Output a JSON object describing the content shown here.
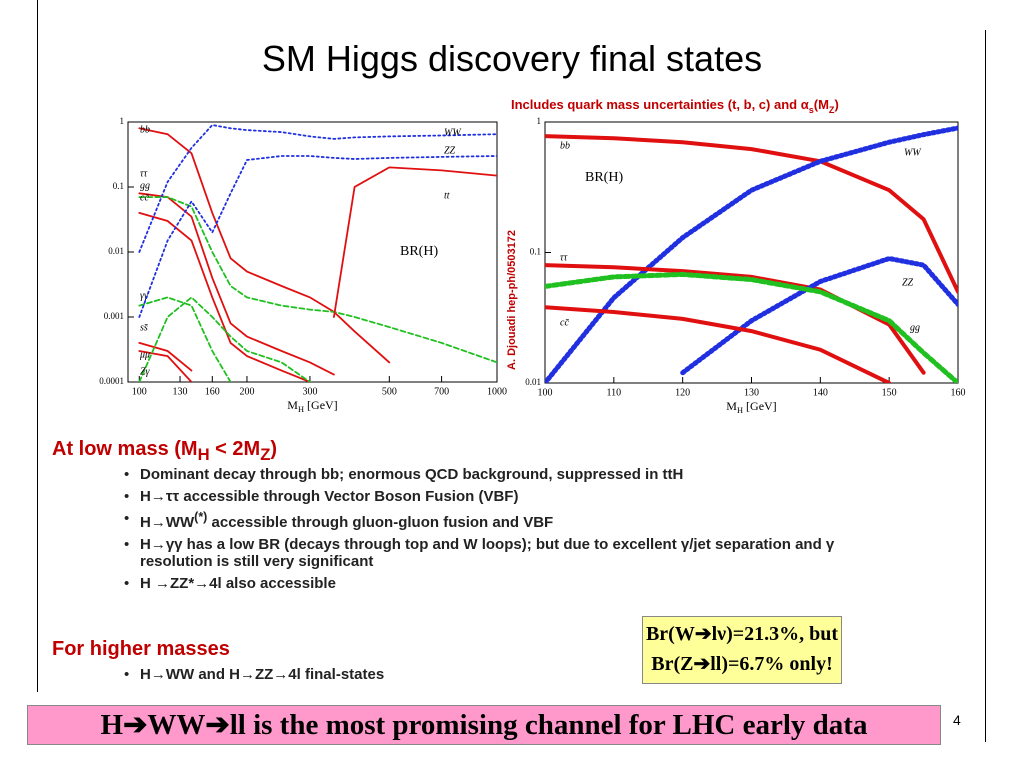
{
  "title": "SM Higgs discovery final states",
  "chart_data": [
    {
      "type": "line",
      "xscale": "log",
      "yscale": "log",
      "xlabel": [
        "M",
        "H",
        " [GeV]"
      ],
      "annotation": "BR(H)",
      "x": [
        100,
        120,
        140,
        160,
        180,
        200,
        250,
        300,
        350,
        400,
        500,
        700,
        1000
      ],
      "xlim": [
        93,
        1000
      ],
      "xticks": [
        100,
        130,
        160,
        200,
        300,
        500,
        700,
        1000
      ],
      "ylim": [
        0.0001,
        1
      ],
      "yticks": [
        1,
        0.1,
        0.01,
        0.001,
        0.0001
      ],
      "series": [
        {
          "name": "bb",
          "color": "#e01010",
          "dash": "solid",
          "values": [
            0.8,
            0.65,
            0.33,
            0.04,
            0.008,
            0.005,
            0.003,
            0.002,
            0.0012,
            0.0006,
            0.0002,
            null,
            null
          ]
        },
        {
          "name": "ττ",
          "color": "#e01010",
          "dash": "solid",
          "values": [
            0.08,
            0.07,
            0.035,
            0.004,
            0.0008,
            0.0005,
            0.0003,
            0.0002,
            0.00013,
            null,
            null,
            null,
            null
          ]
        },
        {
          "name": "gg",
          "color": "#20c020",
          "dash": "dashed",
          "values": [
            0.07,
            0.07,
            0.05,
            0.01,
            0.003,
            0.002,
            0.0015,
            0.0013,
            0.0012,
            0.001,
            0.0007,
            0.0004,
            0.0002
          ]
        },
        {
          "name": "cc̄",
          "color": "#e01010",
          "dash": "solid",
          "values": [
            0.04,
            0.03,
            0.015,
            0.002,
            0.0004,
            0.00025,
            0.00015,
            0.0001,
            null,
            null,
            null,
            null,
            null
          ]
        },
        {
          "name": "γγ",
          "color": "#20c020",
          "dash": "dashed",
          "values": [
            0.0015,
            0.002,
            0.0015,
            0.0003,
            0.0001,
            null,
            null,
            null,
            null,
            null,
            null,
            null,
            null
          ]
        },
        {
          "name": "ss̄",
          "color": "#e01010",
          "dash": "solid",
          "values": [
            0.0004,
            0.0003,
            0.00015,
            null,
            null,
            null,
            null,
            null,
            null,
            null,
            null,
            null,
            null
          ]
        },
        {
          "name": "μμ",
          "color": "#e01010",
          "dash": "solid",
          "values": [
            0.0003,
            0.00025,
            0.0001,
            null,
            null,
            null,
            null,
            null,
            null,
            null,
            null,
            null,
            null
          ]
        },
        {
          "name": "Zγ",
          "color": "#20c020",
          "dash": "dashed",
          "values": [
            0.0001,
            0.001,
            0.002,
            0.001,
            0.0005,
            0.0003,
            0.0002,
            0.0001,
            null,
            null,
            null,
            null,
            null
          ]
        },
        {
          "name": "WW",
          "color": "#2030e0",
          "dash": "dotted",
          "values": [
            0.01,
            0.12,
            0.4,
            0.9,
            0.8,
            0.75,
            0.7,
            0.6,
            0.55,
            0.58,
            0.6,
            0.62,
            0.65
          ]
        },
        {
          "name": "ZZ",
          "color": "#2030e0",
          "dash": "dotted",
          "values": [
            0.001,
            0.015,
            0.06,
            0.02,
            0.08,
            0.26,
            0.3,
            0.3,
            0.28,
            0.27,
            0.28,
            0.29,
            0.3
          ]
        },
        {
          "name": "tt",
          "color": "#e01010",
          "dash": "solid",
          "values": [
            null,
            null,
            null,
            null,
            null,
            null,
            null,
            null,
            0.001,
            0.1,
            0.2,
            0.18,
            0.15
          ]
        }
      ]
    },
    {
      "type": "line",
      "yscale": "log",
      "title": [
        "Includes quark mass uncertainties (t, b, c) and α",
        "s",
        "(M",
        "Z",
        ")"
      ],
      "side_note": "A. Djouadi hep-ph/0503172",
      "xlabel": [
        "M",
        "H",
        " [GeV]"
      ],
      "annotation": "BR(H)",
      "x": [
        100,
        110,
        120,
        130,
        140,
        150,
        155,
        160
      ],
      "xlim": [
        100,
        160
      ],
      "xticks": [
        100,
        110,
        120,
        130,
        140,
        150,
        160
      ],
      "ylim": [
        0.01,
        1
      ],
      "yticks": [
        1,
        0.1,
        0.01
      ],
      "series": [
        {
          "name": "bb",
          "color": "#e01010",
          "dash": "solid",
          "values": [
            0.78,
            0.75,
            0.7,
            0.62,
            0.5,
            0.3,
            0.18,
            0.05
          ]
        },
        {
          "name": "WW",
          "color": "#2030e0",
          "dash": "dotted",
          "values": [
            0.01,
            0.045,
            0.13,
            0.3,
            0.5,
            0.7,
            0.8,
            0.9
          ]
        },
        {
          "name": "ττ",
          "color": "#e01010",
          "dash": "solid",
          "values": [
            0.08,
            0.077,
            0.072,
            0.065,
            0.052,
            0.028,
            0.012,
            null
          ]
        },
        {
          "name": "ZZ",
          "color": "#2030e0",
          "dash": "dotted",
          "values": [
            null,
            null,
            0.012,
            0.03,
            0.06,
            0.09,
            0.08,
            0.04
          ]
        },
        {
          "name": "gg",
          "color": "#20c020",
          "dash": "dashed",
          "values": [
            0.055,
            0.065,
            0.068,
            0.062,
            0.05,
            0.03,
            0.017,
            0.01
          ]
        },
        {
          "name": "cc̄",
          "color": "#e01010",
          "dash": "solid",
          "values": [
            0.038,
            0.035,
            0.031,
            0.025,
            0.018,
            0.01,
            null,
            null
          ]
        }
      ]
    }
  ],
  "low_mass": {
    "heading": [
      "At low mass (M",
      "H",
      " < 2M",
      "Z",
      ")"
    ],
    "bullets": [
      [
        "Dominant decay through bb; enormous QCD background, suppressed in ttH"
      ],
      [
        "H→ττ accessible through Vector Boson Fusion (VBF)"
      ],
      [
        "H→WW",
        "(*)",
        " accessible through gluon-gluon fusion and VBF"
      ],
      [
        "H→γγ has a low BR (decays through top and W loops); but due to excellent γ/jet separation and γ resolution is still very significant"
      ],
      [
        "H →ZZ*→4l also accessible"
      ]
    ]
  },
  "high_mass": {
    "heading": "For higher masses",
    "bullets": [
      "H→WW and H→ZZ→4l final-states"
    ]
  },
  "note_box": [
    "Br(W➔lν)=21.3%, but",
    "Br(Z➔ll)=6.7% only!"
  ],
  "banner": "H➔WW➔ll is the most promising channel for LHC early data",
  "page_number": "4"
}
